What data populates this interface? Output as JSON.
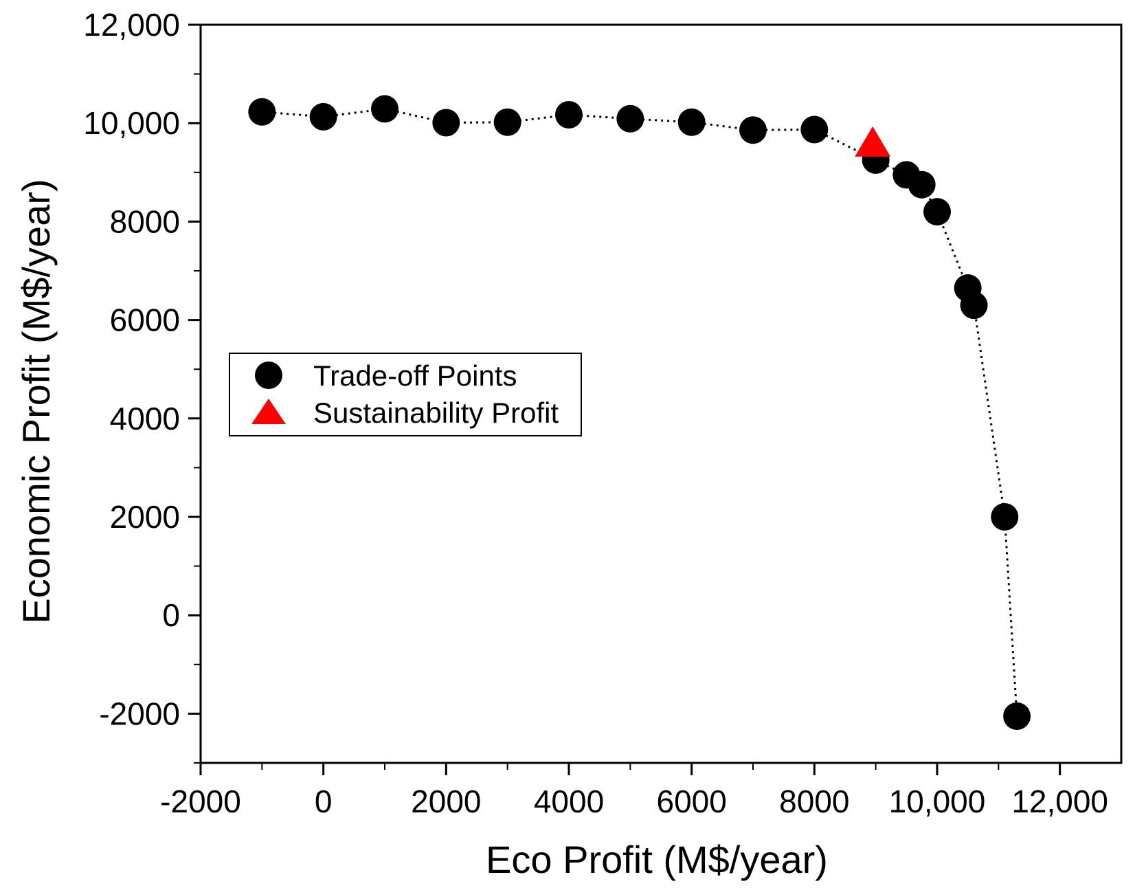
{
  "chart_data": {
    "type": "scatter",
    "title": "",
    "xlabel": "Eco Profit (M$/year)",
    "ylabel": "Economic Profit (M$/year)",
    "xlim": [
      -2000,
      13000
    ],
    "ylim": [
      -3000,
      12000
    ],
    "x_major_ticks": [
      -2000,
      0,
      2000,
      4000,
      6000,
      8000,
      10000,
      12000
    ],
    "x_tick_labels": [
      "-2000",
      "0",
      "2000",
      "4000",
      "6000",
      "8000",
      "10,000",
      "12,000"
    ],
    "x_minor_ticks": [
      -1000,
      1000,
      3000,
      5000,
      7000,
      9000,
      11000
    ],
    "y_major_ticks": [
      -2000,
      0,
      2000,
      4000,
      6000,
      8000,
      10000,
      12000
    ],
    "y_tick_labels": [
      "-2000",
      "0",
      "2000",
      "4000",
      "6000",
      "8000",
      "10,000",
      "12,000"
    ],
    "y_minor_ticks": [
      -3000,
      -1000,
      1000,
      3000,
      5000,
      7000,
      9000,
      11000
    ],
    "grid": false,
    "legend_position": "center-left",
    "series": [
      {
        "name": "Trade-off Points",
        "marker": "circle",
        "color": "#000000",
        "connector": "dotted",
        "points": [
          {
            "x": -1000,
            "y": 10230
          },
          {
            "x": 0,
            "y": 10130
          },
          {
            "x": 1000,
            "y": 10290
          },
          {
            "x": 2000,
            "y": 10010
          },
          {
            "x": 3000,
            "y": 10020
          },
          {
            "x": 4000,
            "y": 10170
          },
          {
            "x": 5000,
            "y": 10090
          },
          {
            "x": 6000,
            "y": 10020
          },
          {
            "x": 7000,
            "y": 9860
          },
          {
            "x": 8000,
            "y": 9870
          },
          {
            "x": 9000,
            "y": 9250
          },
          {
            "x": 9500,
            "y": 8950
          },
          {
            "x": 9750,
            "y": 8750
          },
          {
            "x": 10000,
            "y": 8200
          },
          {
            "x": 10500,
            "y": 6650
          },
          {
            "x": 10600,
            "y": 6300
          },
          {
            "x": 11100,
            "y": 2000
          },
          {
            "x": 11300,
            "y": -2050
          }
        ]
      },
      {
        "name": "Sustainability Profit",
        "marker": "triangle",
        "color": "#ff0000",
        "points": [
          {
            "x": 8950,
            "y": 9600
          }
        ]
      }
    ]
  }
}
